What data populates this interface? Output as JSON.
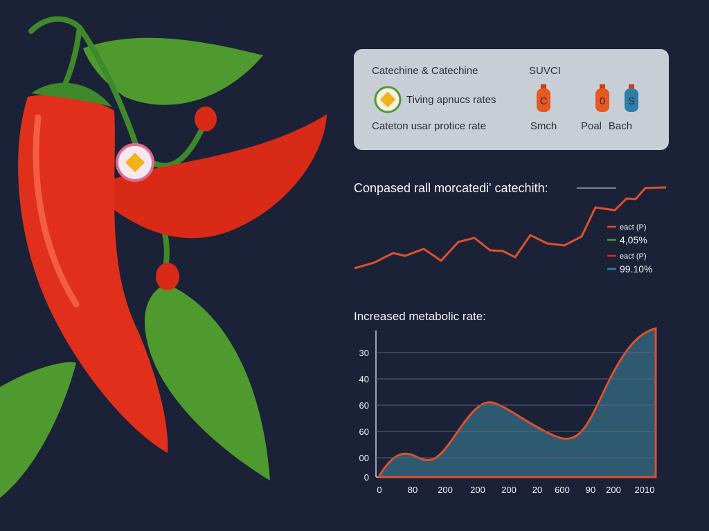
{
  "panel": {
    "title": "Catechine & Catechine",
    "code": "SUVCI",
    "row1": "Tiving apnucs rates",
    "row2": "Cateton usar protice rate",
    "bottles": [
      {
        "letter": "C",
        "label": "Smch"
      },
      {
        "letter": "0",
        "label": "Poal"
      },
      {
        "letter": "S",
        "label": "Bach"
      }
    ]
  },
  "trend": {
    "title": "Conpased rall morcatedi' catechith:",
    "legend": [
      {
        "name": "eact (P)",
        "value": "4,05%"
      },
      {
        "name": "eact (P)",
        "value": "99.10%"
      }
    ]
  },
  "area": {
    "title": "Increased metabolic rate:",
    "y_labels": [
      "30",
      "40",
      "60",
      "60",
      "00",
      "0"
    ],
    "x_labels": [
      "0",
      "80",
      "200",
      "200",
      "200",
      "20",
      "600",
      "90",
      "200",
      "2010"
    ]
  }
}
